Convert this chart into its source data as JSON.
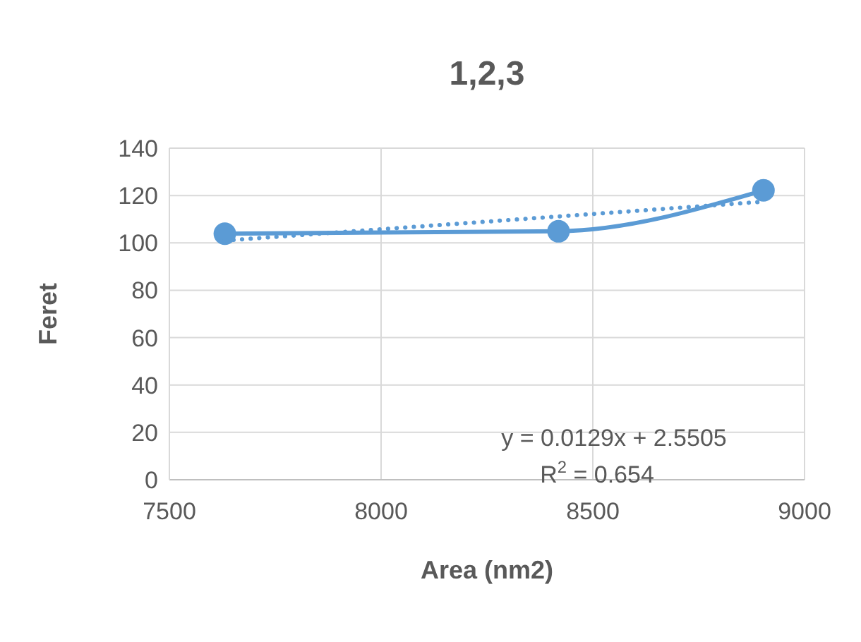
{
  "chart_data": {
    "type": "line",
    "title": "1,2,3",
    "xlabel": "Area (nm2)",
    "ylabel": "Feret",
    "series": [
      {
        "color": "#5b9bd5",
        "x": [
          7631,
          8419,
          8903
        ],
        "values": [
          103.9,
          104.9,
          122.2
        ],
        "marker": "circle",
        "line_style": "solid"
      },
      {
        "color": "#5b9bd5",
        "x": [
          7631,
          8903
        ],
        "values": [
          101.0,
          117.4
        ],
        "marker": "none",
        "line_style": "dotted"
      }
    ],
    "xlim": [
      7500,
      9000
    ],
    "xticks": [
      7500,
      8000,
      8500,
      9000
    ],
    "ylim": [
      0,
      140
    ],
    "yticks": [
      0,
      20,
      40,
      60,
      80,
      100,
      120,
      140
    ],
    "grid": true,
    "annotations": [
      "y = 0.0129x + 2.5505",
      "R$^{2}$ = 0.654"
    ]
  }
}
